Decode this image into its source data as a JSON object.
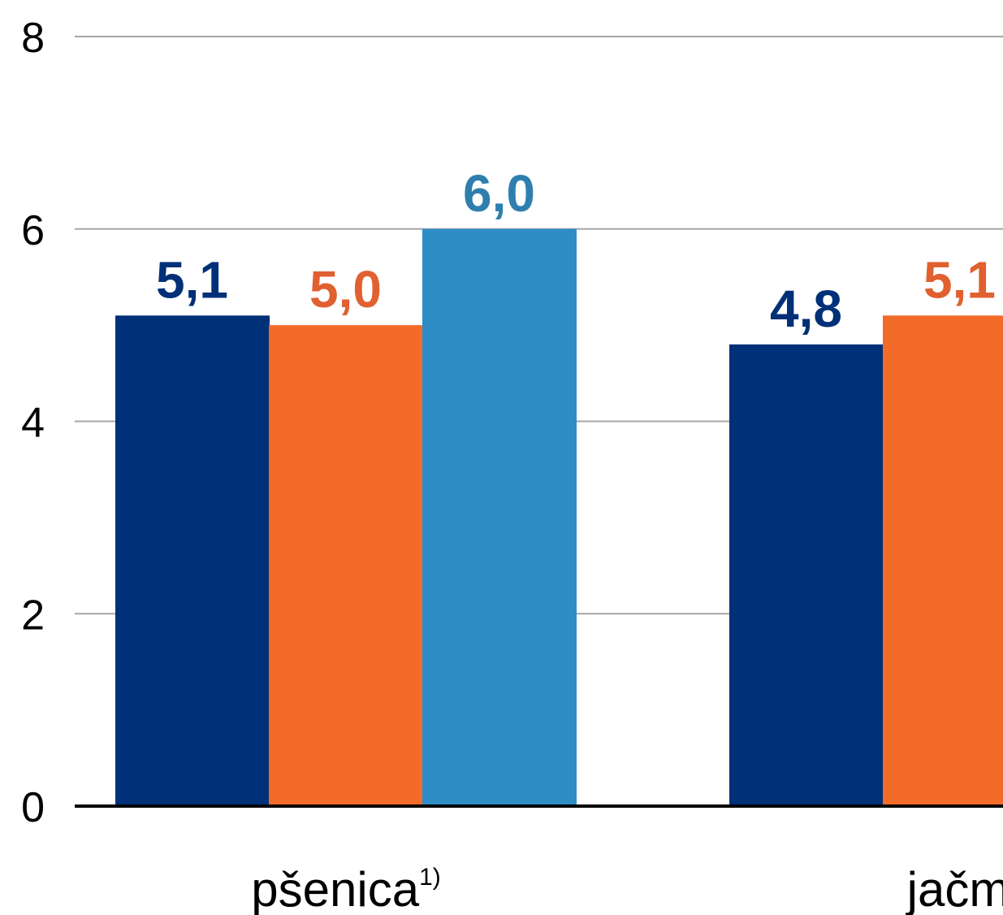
{
  "chart_data": {
    "type": "bar",
    "categories": [
      "pšenica",
      "jačmeň"
    ],
    "category_labels": [
      {
        "text": "pšenica",
        "sup": "1)"
      },
      {
        "text": "jačm",
        "sup": ""
      }
    ],
    "series": [
      {
        "color": "#003078",
        "values": [
          5.1,
          4.8
        ],
        "labels": [
          "5,1",
          "4,8"
        ]
      },
      {
        "color": "#F26B28",
        "values": [
          5.0,
          5.1
        ],
        "labels": [
          "5,0",
          "5,1"
        ]
      },
      {
        "color": "#2E8DC4",
        "values": [
          6.0,
          null
        ],
        "labels": [
          "6,0",
          ""
        ]
      }
    ],
    "label_colors": [
      "#003078",
      "#E06030",
      "#2E7FAE"
    ],
    "ylim": [
      0,
      8
    ],
    "yticks": [
      "0",
      "2",
      "4",
      "6",
      "8"
    ],
    "grid": true,
    "title": "",
    "xlabel": "",
    "ylabel": ""
  }
}
